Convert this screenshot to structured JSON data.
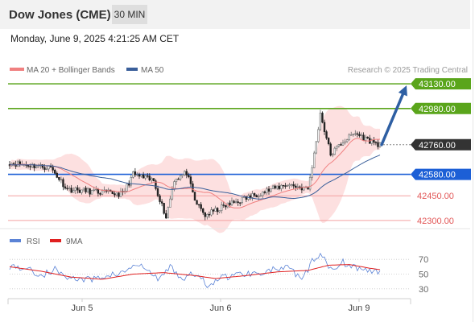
{
  "header": {
    "title": "Dow Jones (CME)",
    "timeframe": "30 MIN",
    "datetime": "Monday, June 9, 2025 4:21:25 AM CET"
  },
  "legend": {
    "ma20_label": "MA 20 + Bollinger Bands",
    "ma50_label": "MA 50",
    "credit": "Research © 2025 Trading Central",
    "rsi_label": "RSI",
    "rsi_ma_label": "9MA"
  },
  "colors": {
    "candle_up": "#6a6a6a",
    "candle_down": "#222222",
    "ma20": "#f08080",
    "bollinger_fill": "#fde0e0",
    "ma50": "#3a5f9a",
    "target": "#5aa51b",
    "pivot": "#1c5fd6",
    "support": "#f4a0a0",
    "current": "#333333",
    "arrow": "#2e5fa3",
    "rsi": "#5b83d6",
    "rsi_ma": "#e02020"
  },
  "chart_data": [
    {
      "type": "candlestick",
      "title": "Dow Jones (CME) 30 MIN",
      "x_labels": [
        "Jun 5",
        "Jun 6",
        "Jun 9"
      ],
      "ylim": [
        42270,
        43160
      ],
      "levels": [
        {
          "value": 43130.0,
          "label": "43130.00",
          "kind": "target"
        },
        {
          "value": 42980.0,
          "label": "42980.00",
          "kind": "target"
        },
        {
          "value": 42760.0,
          "label": "42760.00",
          "kind": "current"
        },
        {
          "value": 42580.0,
          "label": "42580.00",
          "kind": "pivot"
        },
        {
          "value": 42450.0,
          "label": "42450.00",
          "kind": "support"
        },
        {
          "value": 42300.0,
          "label": "42300.00",
          "kind": "support"
        }
      ],
      "key_points": [
        {
          "x": 0,
          "y": 42650
        },
        {
          "x": 20,
          "y": 42620
        },
        {
          "x": 28,
          "y": 42490
        },
        {
          "x": 45,
          "y": 42470
        },
        {
          "x": 55,
          "y": 42460
        },
        {
          "x": 60,
          "y": 42580
        },
        {
          "x": 70,
          "y": 42540
        },
        {
          "x": 76,
          "y": 42320
        },
        {
          "x": 80,
          "y": 42550
        },
        {
          "x": 86,
          "y": 42590
        },
        {
          "x": 90,
          "y": 42420
        },
        {
          "x": 95,
          "y": 42330
        },
        {
          "x": 105,
          "y": 42390
        },
        {
          "x": 120,
          "y": 42460
        },
        {
          "x": 135,
          "y": 42520
        },
        {
          "x": 145,
          "y": 42490
        },
        {
          "x": 148,
          "y": 42700
        },
        {
          "x": 151,
          "y": 42950
        },
        {
          "x": 156,
          "y": 42700
        },
        {
          "x": 162,
          "y": 42780
        },
        {
          "x": 168,
          "y": 42830
        },
        {
          "x": 174,
          "y": 42790
        },
        {
          "x": 180,
          "y": 42760
        }
      ],
      "arrow": {
        "from": 42760,
        "to": 43130
      }
    },
    {
      "type": "line",
      "title": "RSI",
      "ylim": [
        20,
        80
      ],
      "y_ticks": [
        70,
        50,
        30
      ],
      "series": [
        {
          "name": "RSI",
          "key_points": [
            [
              0,
              61
            ],
            [
              8,
              58
            ],
            [
              15,
              48
            ],
            [
              22,
              56
            ],
            [
              30,
              44
            ],
            [
              40,
              42
            ],
            [
              48,
              49
            ],
            [
              55,
              51
            ],
            [
              60,
              62
            ],
            [
              66,
              58
            ],
            [
              72,
              42
            ],
            [
              78,
              60
            ],
            [
              84,
              44
            ],
            [
              90,
              50
            ],
            [
              96,
              36
            ],
            [
              104,
              46
            ],
            [
              112,
              50
            ],
            [
              120,
              52
            ],
            [
              128,
              56
            ],
            [
              136,
              58
            ],
            [
              142,
              40
            ],
            [
              147,
              68
            ],
            [
              151,
              75
            ],
            [
              156,
              58
            ],
            [
              162,
              66
            ],
            [
              168,
              60
            ],
            [
              174,
              54
            ],
            [
              180,
              52
            ]
          ]
        },
        {
          "name": "9MA",
          "key_points": [
            [
              0,
              60
            ],
            [
              15,
              54
            ],
            [
              30,
              46
            ],
            [
              45,
              43
            ],
            [
              60,
              50
            ],
            [
              75,
              52
            ],
            [
              90,
              48
            ],
            [
              100,
              44
            ],
            [
              115,
              48
            ],
            [
              130,
              53
            ],
            [
              145,
              55
            ],
            [
              155,
              62
            ],
            [
              165,
              63
            ],
            [
              175,
              58
            ],
            [
              180,
              56
            ]
          ]
        }
      ]
    }
  ]
}
